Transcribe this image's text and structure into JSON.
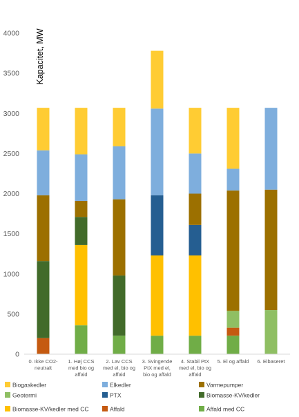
{
  "chart_data": {
    "type": "bar",
    "stacked": true,
    "ylabel": "Kapacitet, MW",
    "xlabel": "",
    "ylim": [
      0,
      4000
    ],
    "yticks": [
      0,
      500,
      1000,
      1500,
      2000,
      2500,
      3000,
      3500,
      4000
    ],
    "grid": false,
    "legend_position": "bottom",
    "categories": [
      [
        "0. Ikke CO2-",
        "neutralt"
      ],
      [
        "1. Høj CCS",
        "med bio og",
        "affald"
      ],
      [
        "2. Lav CCS",
        "med el, bio og",
        "affald"
      ],
      [
        "3. Svingende",
        "PtX med el,",
        "bio og affald"
      ],
      [
        "4. Stabil PtX",
        "med el, bio og",
        "affald"
      ],
      [
        "5. El og affald"
      ],
      [
        "6. Elbaseret"
      ]
    ],
    "series": [
      {
        "name": "Affald med CC",
        "color": "#70AD47",
        "values": [
          0,
          360,
          230,
          230,
          230,
          230,
          0
        ]
      },
      {
        "name": "Affald",
        "color": "#C55A11",
        "values": [
          200,
          0,
          0,
          0,
          0,
          100,
          0
        ]
      },
      {
        "name": "Biomasse-KV/kedler med CC",
        "color": "#FFC000",
        "values": [
          0,
          1000,
          0,
          1000,
          1000,
          0,
          0
        ]
      },
      {
        "name": "Biomasse-KV/kedler",
        "color": "#426B2A",
        "values": [
          960,
          350,
          750,
          0,
          0,
          0,
          0
        ]
      },
      {
        "name": "PTX",
        "color": "#255E91",
        "values": [
          0,
          0,
          0,
          750,
          380,
          0,
          0
        ]
      },
      {
        "name": "Geotermi",
        "color": "#8FBF63",
        "values": [
          0,
          0,
          0,
          0,
          0,
          210,
          550
        ]
      },
      {
        "name": "Varmepumper",
        "color": "#9C7000",
        "values": [
          820,
          200,
          950,
          0,
          390,
          1500,
          1500
        ]
      },
      {
        "name": "Elkedler",
        "color": "#7EAEDD",
        "values": [
          560,
          580,
          660,
          1080,
          500,
          270,
          1020
        ]
      },
      {
        "name": "Biogaskedler",
        "color": "#FFCC33",
        "values": [
          530,
          580,
          480,
          720,
          570,
          760,
          0
        ]
      }
    ],
    "legend_order": [
      "Biogaskedler",
      "Elkedler",
      "Varmepumper",
      "Geotermi",
      "PTX",
      "Biomasse-KV/kedler",
      "Biomasse-KV/kedler med CC",
      "Affald",
      "Affald med CC"
    ]
  }
}
